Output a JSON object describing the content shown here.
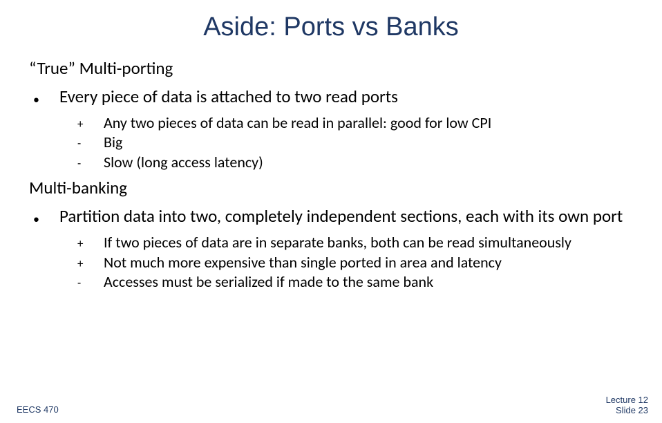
{
  "colors": {
    "title_color": "#1f3864",
    "body_color": "#000000",
    "footer_color": "#1f3864",
    "background": "#ffffff"
  },
  "typography": {
    "title_font": "Comic Sans MS",
    "body_font": "Calibri",
    "title_size_pt": 38,
    "section_size_pt": 25,
    "lvl1_size_pt": 25,
    "lvl2_size_pt": 22,
    "footer_size_pt": 13
  },
  "title": "Aside: Ports vs Banks",
  "sections": [
    {
      "heading": "“True” Multi-porting",
      "points": [
        {
          "bullet": "•",
          "text": "Every piece of data is attached to two read ports",
          "subpoints": [
            {
              "marker": "+",
              "text": "Any two pieces of data can be read in parallel: good for low CPI"
            },
            {
              "marker": "-",
              "text": "Big"
            },
            {
              "marker": "-",
              "text": "Slow (long access latency)"
            }
          ]
        }
      ]
    },
    {
      "heading": "Multi-banking",
      "points": [
        {
          "bullet": "•",
          "text": "Partition data into two, completely independent sections, each with its own port",
          "subpoints": [
            {
              "marker": "+",
              "text": "If two pieces of data are in separate banks, both can be read simultaneously"
            },
            {
              "marker": "+",
              "text": "Not much more expensive than single ported in area and latency"
            },
            {
              "marker": "-",
              "text": "Accesses must be serialized if made to the same bank"
            }
          ]
        }
      ]
    }
  ],
  "footer": {
    "left": "EECS 470",
    "right_line1": "Lecture 12",
    "right_line2": "Slide 23"
  }
}
